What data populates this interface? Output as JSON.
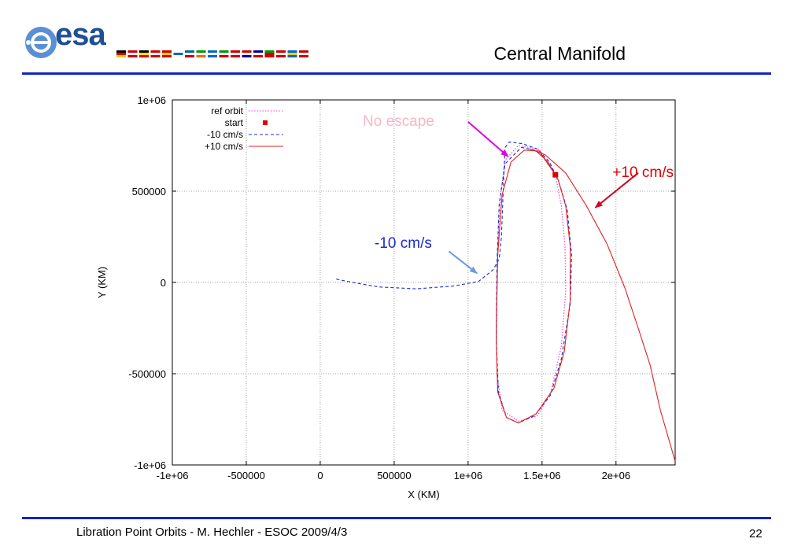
{
  "header": {
    "logo_text": "esa",
    "title": "Central Manifold"
  },
  "footer": {
    "text": "Libration Point Orbits -  M. Hechler - ESOC 2009/4/3",
    "page_number": "22"
  },
  "colors": {
    "rule": "#1322c8",
    "ref_orbit": "#e040e0",
    "start": "#e00000",
    "minus": "#1a2bd0",
    "plus": "#e02020",
    "annotation_no_escape": "#f4b8c8",
    "arrow_no_escape": "#e000e0",
    "annotation_minus": "#1a2bd0",
    "arrow_minus": "#6a9ae8",
    "annotation_plus": "#e00000",
    "arrow_plus": "#d00020"
  },
  "chart_data": {
    "type": "line",
    "xlabel": "X (KM)",
    "ylabel": "Y (KM)",
    "xlim": [
      -1000000,
      2400000
    ],
    "ylim": [
      -1000000,
      1000000
    ],
    "xticks": [
      {
        "v": -1000000,
        "label": "-1e+06"
      },
      {
        "v": -500000,
        "label": "-500000"
      },
      {
        "v": 0,
        "label": "0"
      },
      {
        "v": 500000,
        "label": "500000"
      },
      {
        "v": 1000000,
        "label": "1e+06"
      },
      {
        "v": 1500000,
        "label": "1.5e+06"
      },
      {
        "v": 2000000,
        "label": "2e+06"
      }
    ],
    "yticks": [
      {
        "v": -1000000,
        "label": "-1e+06"
      },
      {
        "v": -500000,
        "label": "-500000"
      },
      {
        "v": 0,
        "label": "0"
      },
      {
        "v": 500000,
        "label": "500000"
      },
      {
        "v": 1000000,
        "label": "1e+06"
      }
    ],
    "grid": true,
    "legend_position": "top-left",
    "legend": [
      {
        "label": "ref orbit",
        "style": "dotted",
        "key": "ref_orbit"
      },
      {
        "label": "start",
        "style": "point",
        "key": "start"
      },
      {
        "label": "-10 cm/s",
        "style": "dashed",
        "key": "minus"
      },
      {
        "label": "+10 cm/s",
        "style": "solid",
        "key": "plus"
      }
    ],
    "series": [
      {
        "key": "ref_orbit",
        "style": "dotted",
        "points": [
          [
            1590000,
            590000
          ],
          [
            1480000,
            730000
          ],
          [
            1340000,
            750000
          ],
          [
            1250000,
            670000
          ],
          [
            1220000,
            480000
          ],
          [
            1200000,
            200000
          ],
          [
            1190000,
            -200000
          ],
          [
            1195000,
            -500000
          ],
          [
            1230000,
            -700000
          ],
          [
            1340000,
            -760000
          ],
          [
            1470000,
            -730000
          ],
          [
            1560000,
            -600000
          ],
          [
            1630000,
            -350000
          ],
          [
            1660000,
            -50000
          ],
          [
            1655000,
            200000
          ],
          [
            1630000,
            420000
          ],
          [
            1590000,
            590000
          ]
        ]
      },
      {
        "key": "minus",
        "style": "dashed",
        "points": [
          [
            1590000,
            590000
          ],
          [
            1480000,
            720000
          ],
          [
            1360000,
            740000
          ],
          [
            1250000,
            650000
          ],
          [
            1210000,
            430000
          ],
          [
            1195000,
            100000
          ],
          [
            1190000,
            -300000
          ],
          [
            1205000,
            -600000
          ],
          [
            1260000,
            -740000
          ],
          [
            1340000,
            -770000
          ],
          [
            1450000,
            -730000
          ],
          [
            1555000,
            -620000
          ],
          [
            1630000,
            -420000
          ],
          [
            1690000,
            -120000
          ],
          [
            1700000,
            150000
          ],
          [
            1670000,
            400000
          ],
          [
            1610000,
            560000
          ],
          [
            1550000,
            660000
          ],
          [
            1470000,
            730000
          ],
          [
            1370000,
            760000
          ],
          [
            1280000,
            770000
          ],
          [
            1250000,
            740000
          ],
          [
            1240000,
            560000
          ],
          [
            1225000,
            250000
          ],
          [
            1210000,
            130000
          ],
          [
            1170000,
            70000
          ],
          [
            1070000,
            5000
          ],
          [
            900000,
            -20000
          ],
          [
            650000,
            -35000
          ],
          [
            400000,
            -25000
          ],
          [
            220000,
            0
          ],
          [
            100000,
            20000
          ]
        ]
      },
      {
        "key": "plus",
        "style": "solid",
        "points": [
          [
            1590000,
            590000
          ],
          [
            1480000,
            720000
          ],
          [
            1380000,
            725000
          ],
          [
            1290000,
            660000
          ],
          [
            1230000,
            480000
          ],
          [
            1200000,
            150000
          ],
          [
            1190000,
            -300000
          ],
          [
            1200000,
            -600000
          ],
          [
            1260000,
            -740000
          ],
          [
            1340000,
            -770000
          ],
          [
            1460000,
            -720000
          ],
          [
            1580000,
            -580000
          ],
          [
            1650000,
            -380000
          ],
          [
            1690000,
            -100000
          ],
          [
            1690000,
            200000
          ],
          [
            1660000,
            420000
          ],
          [
            1610000,
            560000
          ],
          [
            1540000,
            660000
          ],
          [
            1460000,
            720000
          ],
          [
            1420000,
            730000
          ],
          [
            1520000,
            700000
          ],
          [
            1660000,
            600000
          ],
          [
            1800000,
            420000
          ],
          [
            1940000,
            210000
          ],
          [
            2060000,
            -30000
          ],
          [
            2150000,
            -250000
          ],
          [
            2230000,
            -450000
          ],
          [
            2300000,
            -700000
          ],
          [
            2400000,
            -980000
          ]
        ]
      }
    ],
    "start_point": [
      1590000,
      590000
    ],
    "annotations": [
      {
        "key": "no_escape",
        "text": "No escape",
        "arrow_from": [
          1000000,
          880000
        ],
        "arrow_to": [
          1270000,
          690000
        ]
      },
      {
        "key": "minus",
        "text": "-10 cm/s",
        "arrow_from": [
          870000,
          170000
        ],
        "arrow_to": [
          1060000,
          50000
        ]
      },
      {
        "key": "plus",
        "text": "+10 cm/s",
        "arrow_from": [
          2150000,
          600000
        ],
        "arrow_to": [
          1860000,
          410000
        ]
      }
    ]
  }
}
